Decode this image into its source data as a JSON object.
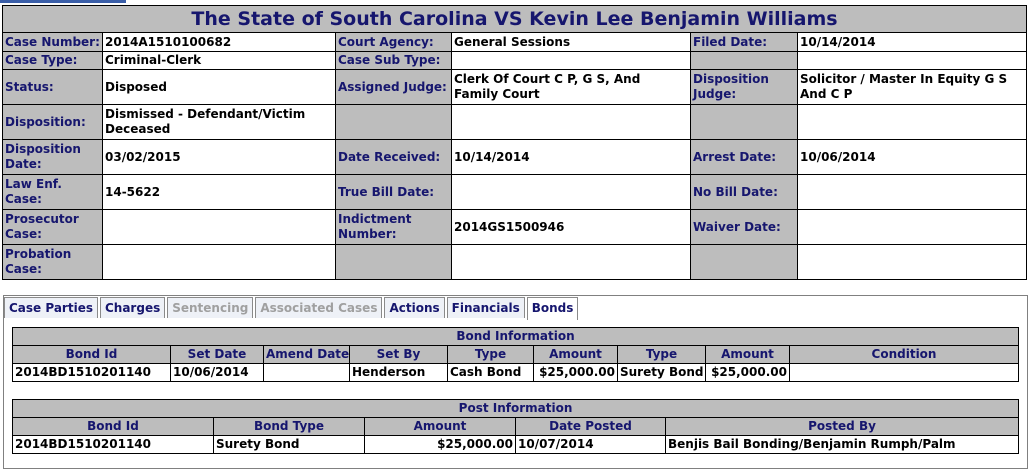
{
  "case": {
    "title": "The State of South Carolina VS Kevin Lee Benjamin Williams",
    "case_number_label": "Case Number:",
    "case_number": "2014A1510100682",
    "court_agency_label": "Court Agency:",
    "court_agency": "General Sessions",
    "filed_date_label": "Filed Date:",
    "filed_date": "10/14/2014",
    "case_type_label": "Case Type:",
    "case_type": "Criminal-Clerk",
    "case_sub_type_label": "Case Sub Type:",
    "status_label": "Status:",
    "status": "Disposed",
    "assigned_judge_label": "Assigned Judge:",
    "assigned_judge": "Clerk Of Court C P, G S, And Family Court",
    "disposition_judge_label": "Disposition Judge:",
    "disposition_judge": "Solicitor / Master In Equity G S And C P",
    "disposition_label": "Disposition:",
    "disposition": "Dismissed - Defendant/Victim Deceased",
    "disposition_date_label": "Disposition Date:",
    "disposition_date": "03/02/2015",
    "date_received_label": "Date Received:",
    "date_received": "10/14/2014",
    "arrest_date_label": "Arrest Date:",
    "arrest_date": "10/06/2014",
    "law_enf_case_label": "Law Enf. Case:",
    "law_enf_case": "14-5622",
    "true_bill_date_label": "True Bill Date:",
    "no_bill_date_label": "No Bill Date:",
    "prosecutor_case_label": "Prosecutor Case:",
    "indictment_number_label": "Indictment Number:",
    "indictment_number": "2014GS1500946",
    "waiver_date_label": "Waiver Date:",
    "probation_case_label": "Probation Case:"
  },
  "tabs": [
    {
      "label": "Case Parties",
      "state": "normal"
    },
    {
      "label": "Charges",
      "state": "normal"
    },
    {
      "label": "Sentencing",
      "state": "disabled"
    },
    {
      "label": "Associated Cases",
      "state": "disabled"
    },
    {
      "label": "Actions",
      "state": "normal"
    },
    {
      "label": "Financials",
      "state": "normal"
    },
    {
      "label": "Bonds",
      "state": "active"
    }
  ],
  "bond_info": {
    "title": "Bond Information",
    "headers": [
      "Bond Id",
      "Set Date",
      "Amend Date",
      "Set By",
      "Type",
      "Amount",
      "Type",
      "Amount",
      "Condition"
    ],
    "rows": [
      [
        "2014BD1510201140",
        "10/06/2014",
        "",
        "Henderson",
        "Cash Bond",
        "$25,000.00",
        "Surety Bond",
        "$25,000.00",
        ""
      ]
    ]
  },
  "post_info": {
    "title": "Post Information",
    "headers": [
      "Bond Id",
      "Bond Type",
      "Amount",
      "Date Posted",
      "Posted By"
    ],
    "rows": [
      [
        "2014BD1510201140",
        "Surety Bond",
        "$25,000.00",
        "10/07/2014",
        "Benjis Bail Bonding/Benjamin Rumph/Palm"
      ]
    ]
  },
  "colors": {
    "label_bg": "#bdbdbd",
    "label_text": "#16166e",
    "border": "#000000"
  }
}
